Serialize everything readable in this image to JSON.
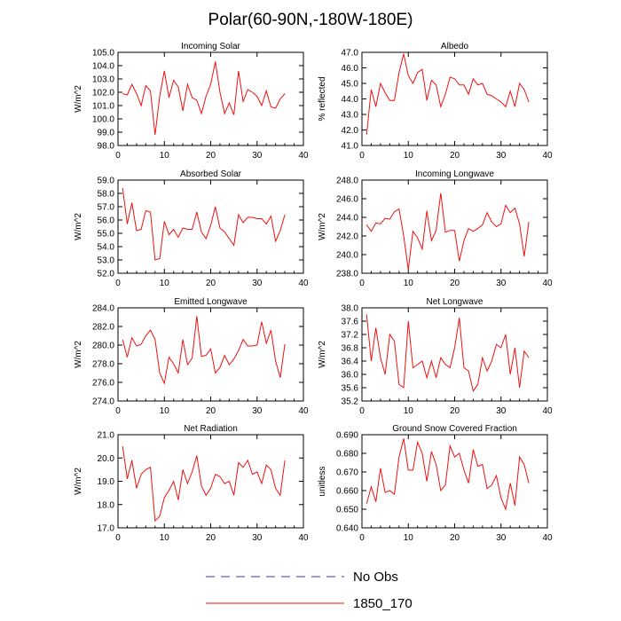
{
  "figure_title": "Polar(60-90N,-180W-180E)",
  "legend": [
    {
      "label": "No Obs",
      "color": "#3333cc",
      "style": "dashed"
    },
    {
      "label": "1850_170",
      "color": "#ee1111",
      "style": "solid"
    }
  ],
  "chart_data": [
    {
      "type": "line",
      "title": "Incoming Solar",
      "ylabel": "W/m^2",
      "xlim": [
        0,
        40
      ],
      "xticks": [
        0,
        10,
        20,
        30,
        40
      ],
      "ylim": [
        98.0,
        105.0
      ],
      "yticks": [
        "98.0",
        "99.0",
        "100.0",
        "101.0",
        "102.0",
        "103.0",
        "104.0",
        "105.0"
      ],
      "x": [
        1,
        2,
        3,
        4,
        5,
        6,
        7,
        8,
        9,
        10,
        11,
        12,
        13,
        14,
        15,
        16,
        17,
        18,
        19,
        20,
        21,
        22,
        23,
        24,
        25,
        26,
        27,
        28,
        29,
        30,
        31,
        32,
        33,
        34,
        35,
        36
      ],
      "series": [
        {
          "name": "1850_170",
          "values": [
            101.9,
            101.8,
            102.6,
            101.9,
            101.0,
            102.5,
            102.1,
            98.8,
            101.7,
            103.6,
            101.6,
            102.9,
            102.4,
            100.6,
            102.6,
            101.6,
            101.4,
            100.4,
            101.7,
            102.6,
            104.3,
            102.0,
            100.4,
            101.2,
            100.3,
            103.6,
            101.3,
            102.2,
            102.0,
            101.7,
            101.0,
            102.1,
            100.9,
            100.8,
            101.5,
            101.9
          ]
        }
      ]
    },
    {
      "type": "line",
      "title": "Albedo",
      "ylabel": "% reflected",
      "xlim": [
        0,
        40
      ],
      "xticks": [
        0,
        10,
        20,
        30,
        40
      ],
      "ylim": [
        41.0,
        47.0
      ],
      "yticks": [
        "41.0",
        "42.0",
        "43.0",
        "44.0",
        "45.0",
        "46.0",
        "47.0"
      ],
      "x": [
        1,
        2,
        3,
        4,
        5,
        6,
        7,
        8,
        9,
        10,
        11,
        12,
        13,
        14,
        15,
        16,
        17,
        18,
        19,
        20,
        21,
        22,
        23,
        24,
        25,
        26,
        27,
        28,
        29,
        30,
        31,
        32,
        33,
        34,
        35,
        36
      ],
      "series": [
        {
          "name": "1850_170",
          "values": [
            41.7,
            44.6,
            43.5,
            45.0,
            44.4,
            43.9,
            43.9,
            45.7,
            46.9,
            45.5,
            45.0,
            45.7,
            45.9,
            43.9,
            45.2,
            44.9,
            43.5,
            44.3,
            45.4,
            45.3,
            44.9,
            44.9,
            44.3,
            45.3,
            44.9,
            45.0,
            44.3,
            44.2,
            44.0,
            43.8,
            43.5,
            44.5,
            43.5,
            45.0,
            44.6,
            43.8
          ]
        }
      ]
    },
    {
      "type": "line",
      "title": "Absorbed Solar",
      "ylabel": "W/m^2",
      "xlim": [
        0,
        40
      ],
      "xticks": [
        0,
        10,
        20,
        30,
        40
      ],
      "ylim": [
        52.0,
        59.0
      ],
      "yticks": [
        "52.0",
        "53.0",
        "54.0",
        "55.0",
        "56.0",
        "57.0",
        "58.0",
        "59.0"
      ],
      "x": [
        1,
        2,
        3,
        4,
        5,
        6,
        7,
        8,
        9,
        10,
        11,
        12,
        13,
        14,
        15,
        16,
        17,
        18,
        19,
        20,
        21,
        22,
        23,
        24,
        25,
        26,
        27,
        28,
        29,
        30,
        31,
        32,
        33,
        34,
        35,
        36
      ],
      "series": [
        {
          "name": "1850_170",
          "values": [
            58.4,
            55.7,
            57.3,
            55.2,
            55.3,
            56.7,
            56.6,
            53.0,
            53.1,
            55.9,
            54.9,
            55.3,
            54.7,
            55.4,
            55.3,
            55.3,
            56.6,
            55.1,
            54.6,
            55.6,
            57.0,
            55.4,
            55.1,
            54.6,
            54.1,
            56.4,
            55.8,
            56.2,
            56.2,
            56.1,
            56.1,
            55.7,
            56.3,
            54.4,
            55.2,
            56.4
          ]
        }
      ]
    },
    {
      "type": "line",
      "title": "Incoming Longwave",
      "ylabel": "W/m^2",
      "xlim": [
        0,
        40
      ],
      "xticks": [
        0,
        10,
        20,
        30,
        40
      ],
      "ylim": [
        238.0,
        248.0
      ],
      "yticks": [
        "238.0",
        "240.0",
        "242.0",
        "244.0",
        "246.0",
        "248.0"
      ],
      "x": [
        1,
        2,
        3,
        4,
        5,
        6,
        7,
        8,
        9,
        10,
        11,
        12,
        13,
        14,
        15,
        16,
        17,
        18,
        19,
        20,
        21,
        22,
        23,
        24,
        25,
        26,
        27,
        28,
        29,
        30,
        31,
        32,
        33,
        34,
        35,
        36
      ],
      "series": [
        {
          "name": "1850_170",
          "values": [
            243.2,
            242.5,
            243.4,
            243.3,
            243.9,
            243.8,
            244.6,
            244.9,
            242.0,
            238.4,
            242.5,
            241.8,
            240.6,
            244.7,
            241.5,
            242.6,
            246.6,
            242.4,
            242.6,
            242.6,
            239.3,
            241.5,
            242.8,
            242.5,
            242.8,
            243.2,
            244.5,
            243.5,
            243.0,
            243.3,
            245.3,
            244.5,
            245.0,
            243.3,
            239.8,
            243.5
          ]
        }
      ]
    },
    {
      "type": "line",
      "title": "Emitted Longwave",
      "ylabel": "W/m^2",
      "xlim": [
        0,
        40
      ],
      "xticks": [
        0,
        10,
        20,
        30,
        40
      ],
      "ylim": [
        274.0,
        284.0
      ],
      "yticks": [
        "274.0",
        "276.0",
        "278.0",
        "280.0",
        "282.0",
        "284.0"
      ],
      "x": [
        1,
        2,
        3,
        4,
        5,
        6,
        7,
        8,
        9,
        10,
        11,
        12,
        13,
        14,
        15,
        16,
        17,
        18,
        19,
        20,
        21,
        22,
        23,
        24,
        25,
        26,
        27,
        28,
        29,
        30,
        31,
        32,
        33,
        34,
        35,
        36
      ],
      "series": [
        {
          "name": "1850_170",
          "values": [
            280.6,
            278.7,
            280.8,
            279.9,
            280.1,
            281.0,
            281.6,
            280.6,
            277.0,
            275.9,
            278.7,
            278.0,
            277.0,
            280.6,
            277.9,
            278.6,
            283.1,
            278.8,
            278.9,
            279.6,
            277.0,
            277.6,
            278.9,
            277.9,
            278.5,
            279.4,
            280.6,
            279.9,
            279.9,
            280.0,
            282.5,
            280.2,
            281.6,
            278.3,
            276.5,
            280.1
          ]
        }
      ]
    },
    {
      "type": "line",
      "title": "Net Longwave",
      "ylabel": "W/m^2",
      "xlim": [
        0,
        40
      ],
      "xticks": [
        0,
        10,
        20,
        30,
        40
      ],
      "ylim": [
        35.2,
        38.0
      ],
      "yticks": [
        "35.2",
        "35.6",
        "36.0",
        "36.4",
        "36.8",
        "37.2",
        "37.6",
        "38.0"
      ],
      "x": [
        1,
        2,
        3,
        4,
        5,
        6,
        7,
        8,
        9,
        10,
        11,
        12,
        13,
        14,
        15,
        16,
        17,
        18,
        19,
        20,
        21,
        22,
        23,
        24,
        25,
        26,
        27,
        28,
        29,
        30,
        31,
        32,
        33,
        34,
        35,
        36
      ],
      "series": [
        {
          "name": "1850_170",
          "values": [
            37.8,
            36.4,
            37.4,
            36.5,
            36.0,
            37.2,
            37.0,
            35.7,
            35.6,
            37.6,
            36.2,
            36.3,
            36.4,
            35.9,
            36.4,
            35.9,
            36.5,
            36.3,
            36.2,
            36.8,
            37.7,
            36.2,
            36.1,
            35.5,
            35.7,
            36.5,
            36.1,
            36.4,
            36.9,
            36.8,
            37.2,
            36.0,
            36.8,
            35.6,
            36.7,
            36.5
          ]
        }
      ]
    },
    {
      "type": "line",
      "title": "Net Radiation",
      "ylabel": "W/m^2",
      "xlim": [
        0,
        40
      ],
      "xticks": [
        0,
        10,
        20,
        30,
        40
      ],
      "ylim": [
        17.0,
        21.0
      ],
      "yticks": [
        "17.0",
        "18.0",
        "19.0",
        "20.0",
        "21.0"
      ],
      "x": [
        1,
        2,
        3,
        4,
        5,
        6,
        7,
        8,
        9,
        10,
        11,
        12,
        13,
        14,
        15,
        16,
        17,
        18,
        19,
        20,
        21,
        22,
        23,
        24,
        25,
        26,
        27,
        28,
        29,
        30,
        31,
        32,
        33,
        34,
        35,
        36
      ],
      "series": [
        {
          "name": "1850_170",
          "values": [
            20.5,
            19.1,
            19.9,
            18.7,
            19.3,
            19.5,
            19.6,
            17.3,
            17.5,
            18.3,
            18.6,
            19.0,
            18.2,
            19.5,
            18.9,
            19.4,
            20.1,
            18.8,
            18.4,
            18.7,
            19.3,
            19.2,
            18.9,
            19.0,
            18.4,
            19.8,
            19.6,
            19.9,
            19.3,
            19.4,
            18.9,
            19.7,
            19.5,
            18.7,
            18.4,
            19.9
          ]
        }
      ]
    },
    {
      "type": "line",
      "title": "Ground Snow Covered Fraction",
      "ylabel": "unitless",
      "xlim": [
        0,
        40
      ],
      "xticks": [
        0,
        10,
        20,
        30,
        40
      ],
      "ylim": [
        0.64,
        0.69
      ],
      "yticks": [
        "0.640",
        "0.650",
        "0.660",
        "0.670",
        "0.680",
        "0.690"
      ],
      "x": [
        1,
        2,
        3,
        4,
        5,
        6,
        7,
        8,
        9,
        10,
        11,
        12,
        13,
        14,
        15,
        16,
        17,
        18,
        19,
        20,
        21,
        22,
        23,
        24,
        25,
        26,
        27,
        28,
        29,
        30,
        31,
        32,
        33,
        34,
        35,
        36
      ],
      "series": [
        {
          "name": "1850_170",
          "values": [
            0.653,
            0.662,
            0.654,
            0.672,
            0.659,
            0.66,
            0.658,
            0.678,
            0.688,
            0.671,
            0.671,
            0.686,
            0.68,
            0.665,
            0.681,
            0.674,
            0.66,
            0.663,
            0.684,
            0.678,
            0.68,
            0.671,
            0.664,
            0.682,
            0.673,
            0.674,
            0.661,
            0.663,
            0.668,
            0.656,
            0.65,
            0.664,
            0.652,
            0.678,
            0.674,
            0.664
          ]
        }
      ]
    }
  ]
}
